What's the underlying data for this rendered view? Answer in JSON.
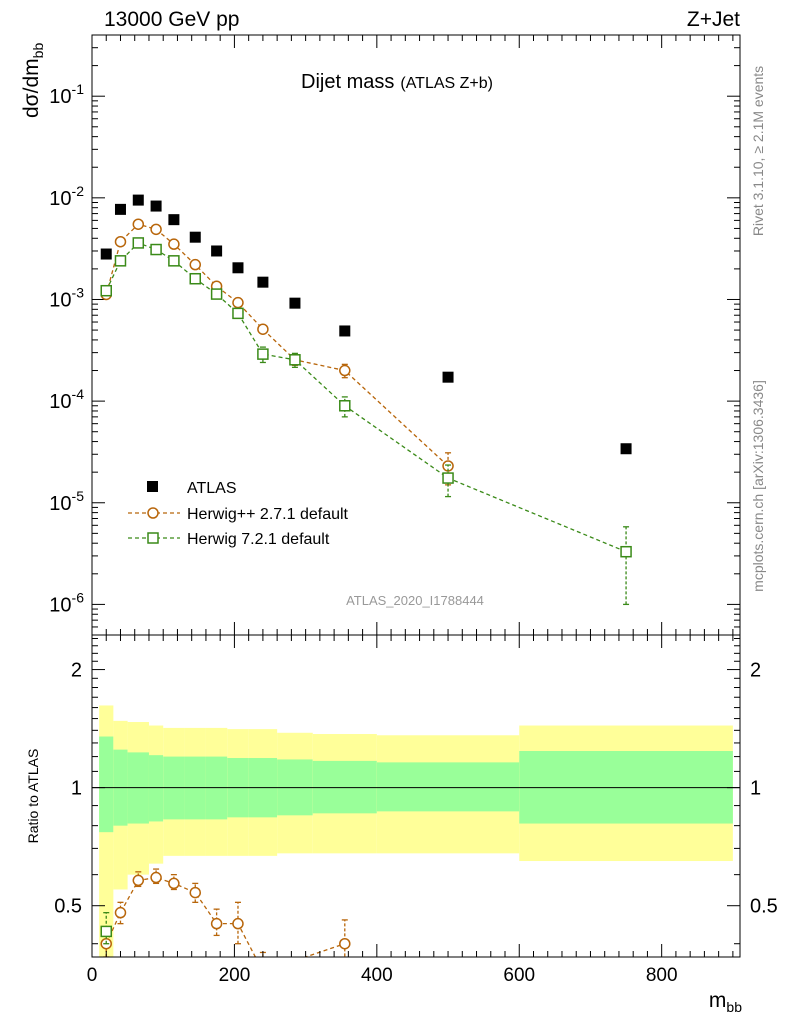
{
  "header": {
    "energy_label": "13000 GeV pp",
    "process_label": "Z+Jet"
  },
  "side_labels": {
    "rivet": "Rivet 3.1.10, ≥ 2.1M events",
    "mcplots": "mcplots.cern.ch [arXiv:1306.3436]"
  },
  "chart_data": [
    {
      "type": "scatter",
      "panel": "main",
      "title_main": "Dijet mass",
      "title_sub": "(ATLAS Z+b)",
      "ylabel_main": "dσ/dm",
      "ylabel_sub": "bb",
      "xlabel_main": "m",
      "xlabel_sub": "bb",
      "analysis_label": "ATLAS_2020_I1788444",
      "log_y": true,
      "xlim": [
        0,
        910
      ],
      "ylim": [
        5e-07,
        0.4
      ],
      "y_ticks": [
        {
          "value": 1e-06,
          "label": "10",
          "exp": "-6"
        },
        {
          "value": 1e-05,
          "label": "10",
          "exp": "-5"
        },
        {
          "value": 0.0001,
          "label": "10",
          "exp": "-4"
        },
        {
          "value": 0.001,
          "label": "10",
          "exp": "-3"
        },
        {
          "value": 0.01,
          "label": "10",
          "exp": "-2"
        },
        {
          "value": 0.1,
          "label": "10",
          "exp": "-1"
        }
      ],
      "legend_position": "lower-left",
      "series": [
        {
          "name": "ATLAS",
          "color": "#000000",
          "marker": "filled-square",
          "x": [
            20,
            40,
            65,
            90,
            115,
            145,
            175,
            205,
            240,
            285,
            355,
            500,
            750
          ],
          "y": [
            0.0028,
            0.0077,
            0.0095,
            0.0083,
            0.0061,
            0.0041,
            0.003,
            0.00205,
            0.00148,
            0.00092,
            0.00049,
            0.000172,
            3.4e-05
          ]
        },
        {
          "name": "Herwig++ 2.7.1 default",
          "color": "#b8660b",
          "marker": "open-circle",
          "x": [
            20,
            40,
            65,
            90,
            115,
            145,
            175,
            205,
            240,
            285,
            355,
            500
          ],
          "y": [
            0.00112,
            0.0037,
            0.0055,
            0.0049,
            0.0035,
            0.0022,
            0.00135,
            0.00093,
            0.00051,
            0.000255,
            0.0002,
            2.3e-05
          ],
          "err_lo": [
            5e-05,
            0.00012,
            0.00015,
            0.00015,
            0.00012,
            0.0001,
            7e-05,
            5e-05,
            4e-05,
            3e-05,
            3e-05,
            8e-06
          ],
          "err_hi": [
            5e-05,
            0.00012,
            0.00015,
            0.00015,
            0.00012,
            0.0001,
            7e-05,
            5e-05,
            4e-05,
            3e-05,
            3e-05,
            8e-06
          ]
        },
        {
          "name": "Herwig 7.2.1 default",
          "color": "#3a8a18",
          "marker": "open-square",
          "x": [
            20,
            40,
            65,
            90,
            115,
            145,
            175,
            205,
            240,
            285,
            355,
            500,
            750
          ],
          "y": [
            0.00122,
            0.0024,
            0.0036,
            0.0031,
            0.0024,
            0.0016,
            0.00113,
            0.00073,
            0.00029,
            0.000255,
            9e-05,
            1.75e-05,
            3.3e-06
          ],
          "err_lo": [
            6e-05,
            0.00012,
            0.00015,
            0.00013,
            0.0001,
            8e-05,
            7e-05,
            6e-05,
            5e-05,
            4e-05,
            2e-05,
            6e-06,
            2.3e-06
          ],
          "err_hi": [
            6e-05,
            0.00012,
            0.00015,
            0.00013,
            0.0001,
            8e-05,
            7e-05,
            6e-05,
            5e-05,
            4e-05,
            2e-05,
            6e-06,
            2.5e-06
          ]
        }
      ]
    },
    {
      "type": "scatter",
      "panel": "ratio",
      "ylabel": "Ratio to ATLAS",
      "log_y": true,
      "xlim": [
        0,
        910
      ],
      "ylim": [
        0.37,
        2.45
      ],
      "x_ticks": [
        0,
        200,
        400,
        600,
        800
      ],
      "y_ticks": [
        0.5,
        1,
        2
      ],
      "reference_line": 1,
      "bands": [
        {
          "x0": 10,
          "x1": 30,
          "inner": [
            0.77,
            1.35
          ],
          "outer": [
            0.37,
            1.62
          ]
        },
        {
          "x0": 30,
          "x1": 50,
          "inner": [
            0.8,
            1.25
          ],
          "outer": [
            0.55,
            1.48
          ]
        },
        {
          "x0": 50,
          "x1": 80,
          "inner": [
            0.81,
            1.23
          ],
          "outer": [
            0.6,
            1.47
          ]
        },
        {
          "x0": 80,
          "x1": 100,
          "inner": [
            0.82,
            1.21
          ],
          "outer": [
            0.64,
            1.44
          ]
        },
        {
          "x0": 100,
          "x1": 130,
          "inner": [
            0.83,
            1.2
          ],
          "outer": [
            0.67,
            1.42
          ]
        },
        {
          "x0": 130,
          "x1": 160,
          "inner": [
            0.83,
            1.2
          ],
          "outer": [
            0.67,
            1.42
          ]
        },
        {
          "x0": 160,
          "x1": 190,
          "inner": [
            0.83,
            1.2
          ],
          "outer": [
            0.67,
            1.42
          ]
        },
        {
          "x0": 190,
          "x1": 220,
          "inner": [
            0.84,
            1.19
          ],
          "outer": [
            0.67,
            1.41
          ]
        },
        {
          "x0": 220,
          "x1": 260,
          "inner": [
            0.84,
            1.19
          ],
          "outer": [
            0.67,
            1.41
          ]
        },
        {
          "x0": 260,
          "x1": 310,
          "inner": [
            0.85,
            1.18
          ],
          "outer": [
            0.68,
            1.38
          ]
        },
        {
          "x0": 310,
          "x1": 400,
          "inner": [
            0.86,
            1.17
          ],
          "outer": [
            0.68,
            1.37
          ]
        },
        {
          "x0": 400,
          "x1": 600,
          "inner": [
            0.87,
            1.16
          ],
          "outer": [
            0.68,
            1.36
          ]
        },
        {
          "x0": 600,
          "x1": 900,
          "inner": [
            0.81,
            1.24
          ],
          "outer": [
            0.65,
            1.44
          ]
        }
      ],
      "band_colors": {
        "inner": "#99ff99",
        "outer": "#ffff99"
      },
      "series": [
        {
          "name": "Herwig++ 2.7.1 default",
          "color": "#b8660b",
          "marker": "open-circle",
          "x": [
            20,
            40,
            65,
            90,
            115,
            145,
            175,
            205,
            240,
            355
          ],
          "y": [
            0.4,
            0.48,
            0.58,
            0.59,
            0.57,
            0.54,
            0.45,
            0.45,
            0.34,
            0.4
          ],
          "err_lo": [
            0.03,
            0.03,
            0.02,
            0.02,
            0.02,
            0.03,
            0.03,
            0.05,
            0.03,
            0.06
          ],
          "err_hi": [
            0.03,
            0.03,
            0.03,
            0.03,
            0.03,
            0.03,
            0.04,
            0.06,
            0.04,
            0.06
          ]
        },
        {
          "name": "Herwig 7.2.1 default",
          "color": "#3a8a18",
          "marker": "open-square",
          "x": [
            20
          ],
          "y": [
            0.43
          ],
          "err_lo": [
            0.03
          ],
          "err_hi": [
            0.05
          ]
        }
      ]
    }
  ]
}
